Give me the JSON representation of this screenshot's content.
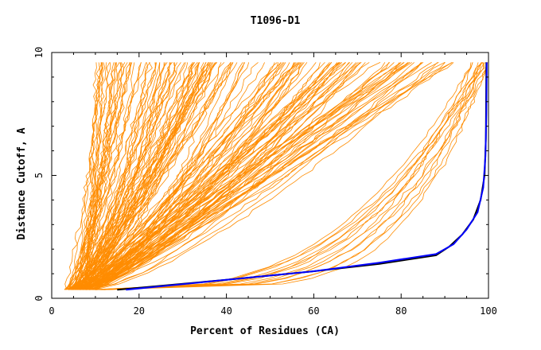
{
  "chart_data": {
    "type": "line",
    "title": "T1096-D1",
    "xlabel": "Percent of Residues (CA)",
    "ylabel": "Distance Cutoff, A",
    "xlim": [
      0,
      100
    ],
    "ylim": [
      0,
      10
    ],
    "x_ticks": [
      0,
      20,
      40,
      60,
      80,
      100
    ],
    "y_ticks": [
      0,
      5,
      10
    ],
    "grid": false,
    "colors": {
      "models": "#ff8c00",
      "best_model": "#0000ff",
      "reference": "#000000",
      "axis": "#000000"
    },
    "groups": [
      {
        "count": 70,
        "x_start": [
          3,
          8
        ],
        "x_at_top": [
          10,
          40
        ],
        "curve": [
          0.55,
          0.95
        ]
      },
      {
        "count": 60,
        "x_start": [
          4,
          9
        ],
        "x_at_top": [
          35,
          72
        ],
        "curve": [
          0.6,
          1.0
        ]
      },
      {
        "count": 30,
        "x_start": [
          5,
          10
        ],
        "x_at_top": [
          70,
          92
        ],
        "curve": [
          0.7,
          1.1
        ]
      },
      {
        "count": 14,
        "x_start": [
          8,
          12
        ],
        "x_at_top": [
          96,
          100
        ],
        "curve": [
          0.2,
          0.35
        ]
      }
    ],
    "reference_curves": [
      {
        "name": "",
        "color": "#000000",
        "x": [
          15,
          40,
          60,
          75,
          88,
          91,
          94,
          96.5,
          98.2,
          99.1,
          99.4,
          99.5
        ],
        "y": [
          0.35,
          0.75,
          1.1,
          1.4,
          1.75,
          2.1,
          2.6,
          3.2,
          4.0,
          5.0,
          6.5,
          9.6
        ]
      },
      {
        "name": "",
        "color": "#0000ff",
        "x": [
          17,
          40,
          60,
          75,
          88,
          92,
          95,
          97.5,
          98.8,
          99.3,
          99.5,
          99.6
        ],
        "y": [
          0.35,
          0.75,
          1.1,
          1.45,
          1.8,
          2.2,
          2.8,
          3.5,
          4.5,
          5.8,
          7.5,
          9.6
        ]
      }
    ]
  }
}
